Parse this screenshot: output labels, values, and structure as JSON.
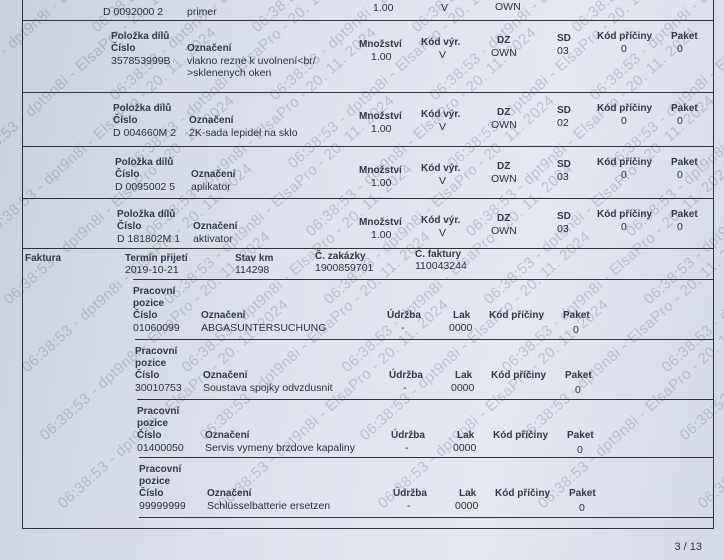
{
  "watermark": "06:38:53 - dpt9n8i - ElsaPro - 20. 11. 2024",
  "labels": {
    "polozka": "Položka dílů",
    "cislo": "Číslo",
    "oznaceni": "Označení",
    "mnozstvi": "Množství",
    "kod_vyr": "Kód výr.",
    "dz": "DZ",
    "sd": "SD",
    "kod_priciny": "Kód příčiny",
    "paket": "Paket",
    "pracovni": "Pracovní",
    "pozice": "pozice",
    "udrzba": "Údržba",
    "lak": "Lak"
  },
  "top_partial": {
    "cislo": "D 0092000 2",
    "oznaceni": "primer",
    "mnozstvi": "1.00",
    "kod_vyr": "V",
    "dz": "OWN"
  },
  "parts": [
    {
      "cislo": "357853999B",
      "oznaceni": "vlakno rezne k uvolnení<br/",
      "oznaceni2": ">sklenenych oken",
      "mnozstvi": "1.00",
      "kod_vyr": "V",
      "dz": "OWN",
      "sd": "03",
      "kod_priciny": "0",
      "paket": "0"
    },
    {
      "cislo": "D 004660M 2",
      "oznaceni": "2K-sada lepidel na sklo",
      "oznaceni2": "",
      "mnozstvi": "1.00",
      "kod_vyr": "V",
      "dz": "OWN",
      "sd": "02",
      "kod_priciny": "0",
      "paket": "0"
    },
    {
      "cislo": "D 0095002 5",
      "oznaceni": "aplikator",
      "oznaceni2": "",
      "mnozstvi": "1.00",
      "kod_vyr": "V",
      "dz": "OWN",
      "sd": "03",
      "kod_priciny": "0",
      "paket": "0"
    },
    {
      "cislo": "D 181802M 1",
      "oznaceni": "aktivator",
      "oznaceni2": "",
      "mnozstvi": "1.00",
      "kod_vyr": "V",
      "dz": "OWN",
      "sd": "03",
      "kod_priciny": "0",
      "paket": "0"
    }
  ],
  "faktura": {
    "label": "Faktura",
    "termin_label": "Termín přijetí",
    "termin": "2019-10-21",
    "stav_label": "Stav km",
    "stav": "114298",
    "zakazky_label": "Č. zakázky",
    "zakazky": "1900859701",
    "faktury_label": "Č. faktury",
    "faktury": "110043244"
  },
  "work": [
    {
      "cislo": "01060099",
      "oznaceni": "ABGASUNTERSUCHUNG",
      "udrzba": "-",
      "lak": "0000",
      "paket": "0"
    },
    {
      "cislo": "30010753",
      "oznaceni": "Soustava spojky odvzdusnit",
      "udrzba": "-",
      "lak": "0000",
      "paket": "0"
    },
    {
      "cislo": "01400050",
      "oznaceni": "Servis vymeny brzdove kapaliny",
      "udrzba": "-",
      "lak": "0000",
      "paket": "0"
    },
    {
      "cislo": "99999999",
      "oznaceni": "Schlüsselbatterie ersetzen",
      "udrzba": "-",
      "lak": "0000",
      "paket": "0"
    }
  ],
  "page_number": "3 / 13"
}
